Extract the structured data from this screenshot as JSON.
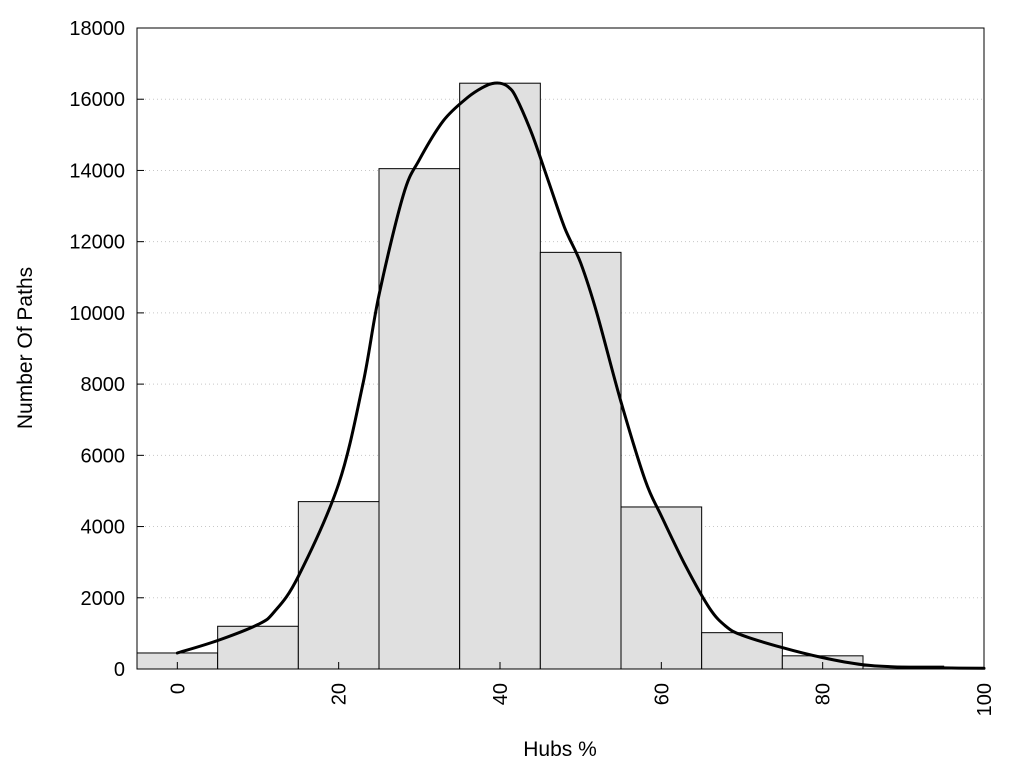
{
  "chart_data": {
    "type": "bar",
    "title": "",
    "xlabel": "Hubs %",
    "ylabel": "Number Of Paths",
    "xlim": [
      -5,
      100
    ],
    "ylim": [
      0,
      18000
    ],
    "x_ticks": [
      0,
      20,
      40,
      60,
      80,
      100
    ],
    "y_ticks": [
      0,
      2000,
      4000,
      6000,
      8000,
      10000,
      12000,
      14000,
      16000,
      18000
    ],
    "grid": "horizontal dotted",
    "bins": [
      {
        "x0": -5,
        "x1": 5,
        "value": 450
      },
      {
        "x0": 5,
        "x1": 15,
        "value": 1200
      },
      {
        "x0": 15,
        "x1": 25,
        "value": 4700
      },
      {
        "x0": 25,
        "x1": 35,
        "value": 14050
      },
      {
        "x0": 35,
        "x1": 45,
        "value": 16450
      },
      {
        "x0": 45,
        "x1": 55,
        "value": 11700
      },
      {
        "x0": 55,
        "x1": 65,
        "value": 4550
      },
      {
        "x0": 65,
        "x1": 75,
        "value": 1020
      },
      {
        "x0": 75,
        "x1": 85,
        "value": 370
      },
      {
        "x0": 85,
        "x1": 95,
        "value": 80
      },
      {
        "x0": 95,
        "x1": 100,
        "value": 20
      }
    ],
    "curve": {
      "x": [
        0,
        5,
        10,
        12,
        15,
        20,
        23,
        25,
        28,
        30,
        33,
        36,
        38,
        39,
        40,
        41,
        42,
        44,
        46,
        48,
        50,
        52,
        55,
        58,
        60,
        63,
        66,
        68,
        70,
        75,
        80,
        85,
        90,
        95,
        100
      ],
      "y": [
        450,
        800,
        1250,
        1600,
        2600,
        5200,
        8000,
        10500,
        13300,
        14300,
        15400,
        16050,
        16350,
        16440,
        16450,
        16350,
        16050,
        15000,
        13700,
        12400,
        11400,
        10000,
        7500,
        5300,
        4300,
        2900,
        1700,
        1200,
        950,
        600,
        320,
        120,
        50,
        30,
        20
      ]
    }
  }
}
